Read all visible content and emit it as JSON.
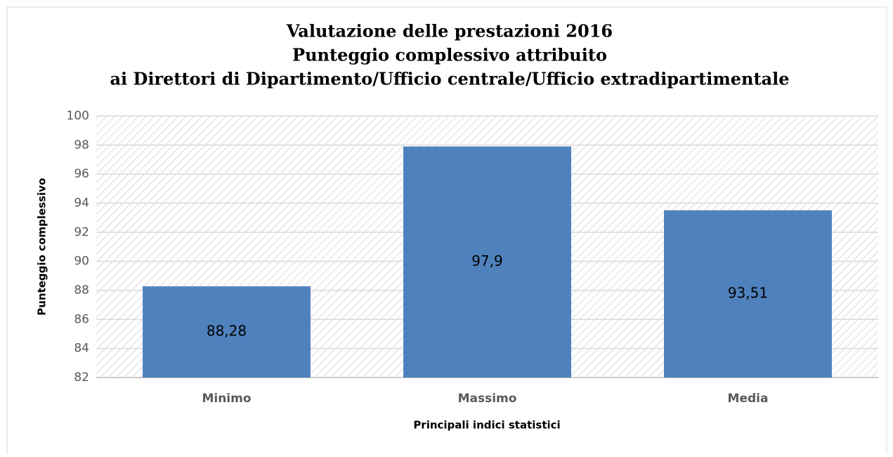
{
  "chart_data": {
    "type": "bar",
    "title": [
      "Valutazione delle prestazioni 2016",
      "Punteggio complessivo attribuito",
      "ai Direttori di Dipartimento/Ufficio centrale/Ufficio extradipartimentale"
    ],
    "x_label": "Principali indici statistici",
    "y_label": "Punteggio complessivo",
    "categories": [
      "Minimo",
      "Massimo",
      "Media"
    ],
    "values": [
      88.28,
      97.9,
      93.51
    ],
    "value_labels": [
      "88,28",
      "97,9",
      "93,51"
    ],
    "color": "#4f81bd",
    "ylim": [
      82,
      100
    ],
    "yticks": [
      82,
      84,
      86,
      88,
      90,
      92,
      94,
      96,
      98,
      100
    ],
    "grid": true
  }
}
